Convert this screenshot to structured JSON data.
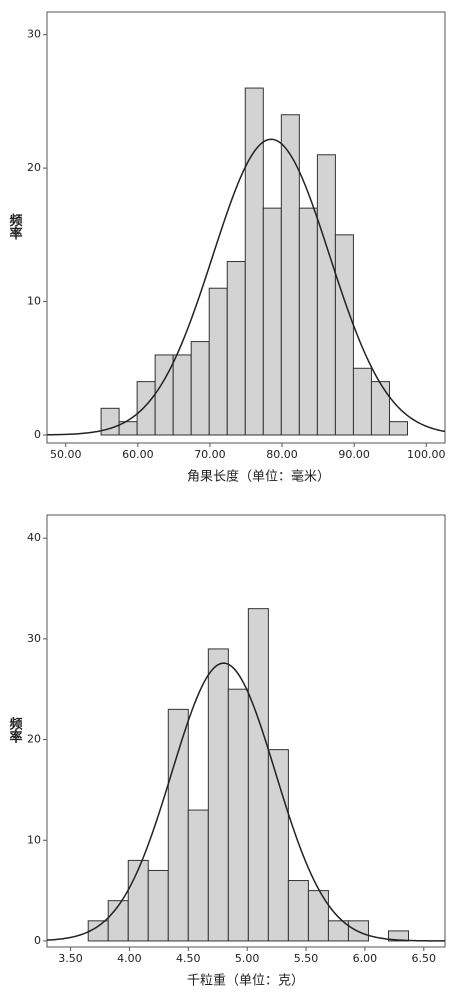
{
  "chart_data": [
    {
      "type": "histogram",
      "x_label": "角果长度（单位：毫米）",
      "y_label": "频率",
      "bins": [
        54.9,
        57.4,
        59.9,
        62.4,
        64.9,
        67.4,
        69.9,
        72.4,
        74.9,
        77.4,
        79.9,
        82.4,
        84.9,
        87.4,
        89.9,
        92.4,
        94.9,
        97.4
      ],
      "values": [
        2,
        1,
        4,
        6,
        6,
        7,
        11,
        13,
        26,
        17,
        24,
        17,
        21,
        15,
        5,
        4,
        1
      ],
      "color": "#d3d3d3",
      "curve": {
        "mean": 78.5,
        "sd": 8.1
      },
      "curve_color": "#222222",
      "xlim": [
        47.4,
        102.6
      ],
      "ylim": [
        -0.6,
        31.7
      ],
      "xticks": [
        {
          "value": 50,
          "label": "50.00"
        },
        {
          "value": 60,
          "label": "60.00"
        },
        {
          "value": 70,
          "label": "70.00"
        },
        {
          "value": 80,
          "label": "80.00"
        },
        {
          "value": 90,
          "label": "90.00"
        },
        {
          "value": 100,
          "label": "100.00"
        }
      ],
      "yticks": [
        0,
        10,
        20,
        30
      ]
    },
    {
      "type": "histogram",
      "x_label": "千粒重（单位：克）",
      "y_label": "频率",
      "bins": [
        3.65,
        3.82,
        3.99,
        4.16,
        4.33,
        4.5,
        4.67,
        4.84,
        5.01,
        5.18,
        5.35,
        5.52,
        5.69,
        5.86,
        6.03,
        6.2,
        6.37
      ],
      "values": [
        2,
        4,
        8,
        7,
        23,
        13,
        29,
        25,
        33,
        19,
        6,
        5,
        2,
        2,
        0,
        1
      ],
      "color": "#d3d3d3",
      "curve": {
        "mean": 4.8,
        "sd": 0.44
      },
      "curve_color": "#222222",
      "xlim": [
        3.3,
        6.68
      ],
      "ylim": [
        -0.6,
        42.3
      ],
      "xticks": [
        {
          "value": 3.5,
          "label": "3.50"
        },
        {
          "value": 4,
          "label": "4.00"
        },
        {
          "value": 4.5,
          "label": "4.50"
        },
        {
          "value": 5,
          "label": "5.00"
        },
        {
          "value": 5.5,
          "label": "5.50"
        },
        {
          "value": 6,
          "label": "6.00"
        },
        {
          "value": 6.5,
          "label": "6.50"
        }
      ],
      "yticks": [
        0,
        10,
        20,
        30,
        40
      ]
    }
  ]
}
